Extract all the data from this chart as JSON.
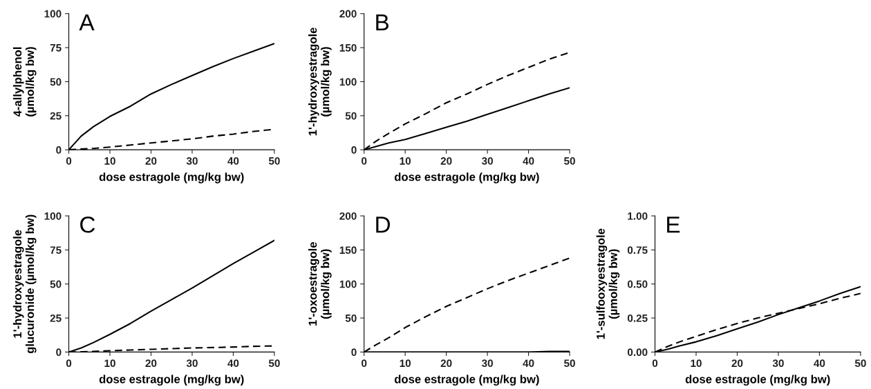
{
  "chart_data": [
    {
      "type": "line",
      "title": "A",
      "xlabel": "dose estragole (mg/kg bw)",
      "ylabel": "4-allylphenol\n(µmol/kg bw)",
      "x": [
        0,
        3,
        6,
        10,
        15,
        20,
        25,
        30,
        35,
        40,
        45,
        50
      ],
      "xlim": [
        0,
        50
      ],
      "xticks": [
        0,
        10,
        20,
        30,
        40,
        50
      ],
      "ylim": [
        0,
        100
      ],
      "yticks": [
        0,
        25,
        50,
        75,
        100
      ],
      "series": [
        {
          "color": "#000000",
          "line_style": "solid",
          "values": [
            0,
            10,
            17,
            24.5,
            32,
            41,
            48,
            54.5,
            61,
            67,
            72.5,
            78
          ]
        },
        {
          "color": "#000000",
          "line_style": "dashed",
          "values": [
            0,
            0.5,
            1,
            2,
            3.5,
            5,
            6.5,
            8,
            10,
            11.5,
            13.5,
            15
          ]
        }
      ]
    },
    {
      "type": "line",
      "title": "B",
      "xlabel": "dose estragole (mg/kg bw)",
      "ylabel": "1'-hydroxyestragole\n(µmol/kg bw)",
      "x": [
        0,
        3,
        6,
        10,
        15,
        20,
        25,
        30,
        35,
        40,
        45,
        50
      ],
      "xlim": [
        0,
        50
      ],
      "xticks": [
        0,
        10,
        20,
        30,
        40,
        50
      ],
      "ylim": [
        0,
        200
      ],
      "yticks": [
        0,
        50,
        100,
        150,
        200
      ],
      "series": [
        {
          "color": "#000000",
          "line_style": "solid",
          "values": [
            0,
            5,
            10,
            15,
            24,
            33,
            42,
            52,
            62,
            72,
            82,
            91
          ]
        },
        {
          "color": "#000000",
          "line_style": "dashed",
          "values": [
            0,
            13,
            24,
            38,
            53,
            69,
            82,
            96,
            109,
            121,
            133,
            143
          ]
        }
      ]
    },
    {
      "type": "line",
      "title": "C",
      "xlabel": "dose estragole (mg/kg bw)",
      "ylabel": "1'-hydroxyestragole\nglucuronide (µmol/kg bw)",
      "x": [
        0,
        3,
        6,
        10,
        15,
        20,
        25,
        30,
        35,
        40,
        45,
        50
      ],
      "xlim": [
        0,
        50
      ],
      "xticks": [
        0,
        10,
        20,
        30,
        40,
        50
      ],
      "ylim": [
        0,
        100
      ],
      "yticks": [
        0,
        25,
        50,
        75,
        100
      ],
      "series": [
        {
          "color": "#000000",
          "line_style": "solid",
          "values": [
            0,
            3,
            7,
            13,
            21,
            30,
            38.5,
            47,
            56,
            65,
            73.5,
            82
          ]
        },
        {
          "color": "#000000",
          "line_style": "dashed",
          "values": [
            0,
            0.2,
            0.5,
            1,
            1.5,
            2,
            2.5,
            3,
            3.3,
            3.7,
            4.2,
            4.5
          ]
        }
      ]
    },
    {
      "type": "line",
      "title": "D",
      "xlabel": "dose estragole (mg/kg bw)",
      "ylabel": "1'-oxoestragole\n(µmol/kg bw)",
      "x": [
        0,
        3,
        6,
        10,
        15,
        20,
        25,
        30,
        35,
        40,
        45,
        50
      ],
      "xlim": [
        0,
        50
      ],
      "xticks": [
        0,
        10,
        20,
        30,
        40,
        50
      ],
      "ylim": [
        0,
        200
      ],
      "yticks": [
        0,
        50,
        100,
        150,
        200
      ],
      "series": [
        {
          "color": "#000000",
          "line_style": "solid",
          "values": [
            0,
            0,
            0,
            0,
            0,
            0,
            0,
            0,
            0,
            0,
            1,
            1
          ]
        },
        {
          "color": "#000000",
          "line_style": "dashed",
          "values": [
            0,
            11,
            21,
            36,
            52,
            67,
            80,
            93,
            105,
            116,
            127,
            138
          ]
        }
      ]
    },
    {
      "type": "line",
      "title": "E",
      "xlabel": "dose estragole (mg/kg bw)",
      "ylabel": "1'-sulfooxyestragole\n(µmol/kg bw)",
      "x": [
        0,
        3,
        6,
        10,
        15,
        20,
        25,
        30,
        35,
        40,
        45,
        50
      ],
      "xlim": [
        0,
        50
      ],
      "xticks": [
        0,
        10,
        20,
        30,
        40,
        50
      ],
      "ylim": [
        0,
        1
      ],
      "yticks": [
        {
          "value": 0,
          "label": "0.00"
        },
        {
          "value": 0.25,
          "label": "0.25"
        },
        {
          "value": 0.5,
          "label": "0.50"
        },
        {
          "value": 0.75,
          "label": "0.75"
        },
        {
          "value": 1,
          "label": "1.00"
        }
      ],
      "series": [
        {
          "color": "#000000",
          "line_style": "solid",
          "values": [
            0,
            0.02,
            0.045,
            0.075,
            0.12,
            0.17,
            0.22,
            0.275,
            0.325,
            0.375,
            0.43,
            0.48
          ]
        },
        {
          "color": "#000000",
          "line_style": "dashed",
          "values": [
            0,
            0.04,
            0.075,
            0.115,
            0.165,
            0.21,
            0.25,
            0.285,
            0.32,
            0.355,
            0.395,
            0.43
          ]
        }
      ]
    }
  ]
}
